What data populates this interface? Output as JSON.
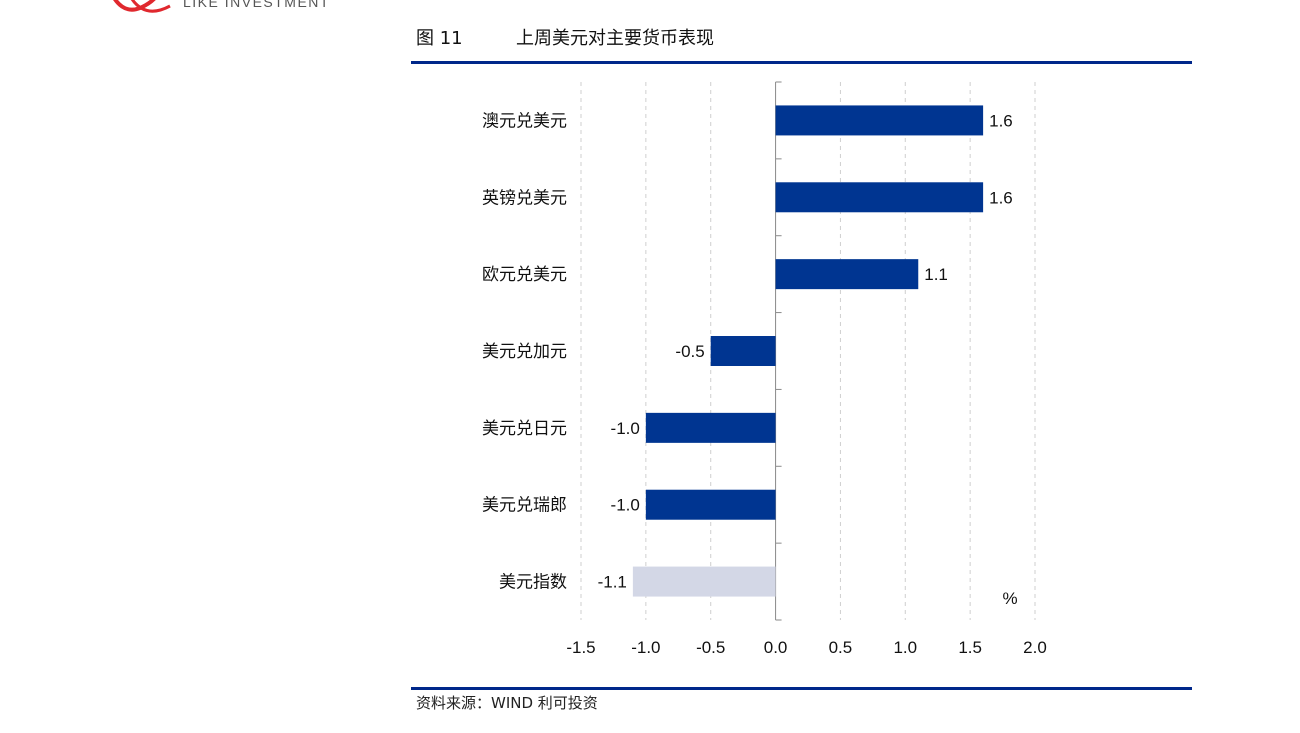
{
  "header": {
    "logo_text": "LIKE INVESTMENT",
    "figure_number": "图 11",
    "figure_title": "上周美元对主要货币表现"
  },
  "footer": {
    "source": "资料来源：WIND  利可投资"
  },
  "colors": {
    "accent": "#00278a",
    "bar_primary": "#003591",
    "bar_highlight": "#d3d7e6",
    "logo_red": "#e0282e"
  },
  "chart_data": {
    "type": "bar",
    "orientation": "horizontal",
    "title": "上周美元对主要货币表现",
    "categories": [
      "澳元兑美元",
      "英镑兑美元",
      "欧元兑美元",
      "美元兑加元",
      "美元兑日元",
      "美元兑瑞郎",
      "美元指数"
    ],
    "values": [
      1.6,
      1.6,
      1.1,
      -0.5,
      -1.0,
      -1.0,
      -1.1
    ],
    "value_labels": [
      "1.6",
      "1.6",
      "1.1",
      "-0.5",
      "-1.0",
      "-1.0",
      "-1.1"
    ],
    "highlight_category": "美元指数",
    "unit": "%",
    "xlim": [
      -1.5,
      2.0
    ],
    "xticks": [
      -1.5,
      -1.0,
      -0.5,
      0.0,
      0.5,
      1.0,
      1.5,
      2.0
    ],
    "xtick_labels": [
      "-1.5",
      "-1.0",
      "-0.5",
      "0.0",
      "0.5",
      "1.0",
      "1.5",
      "2.0"
    ],
    "xlabel": "",
    "ylabel": "",
    "grid": "vertical-dashed",
    "legend": "none"
  }
}
